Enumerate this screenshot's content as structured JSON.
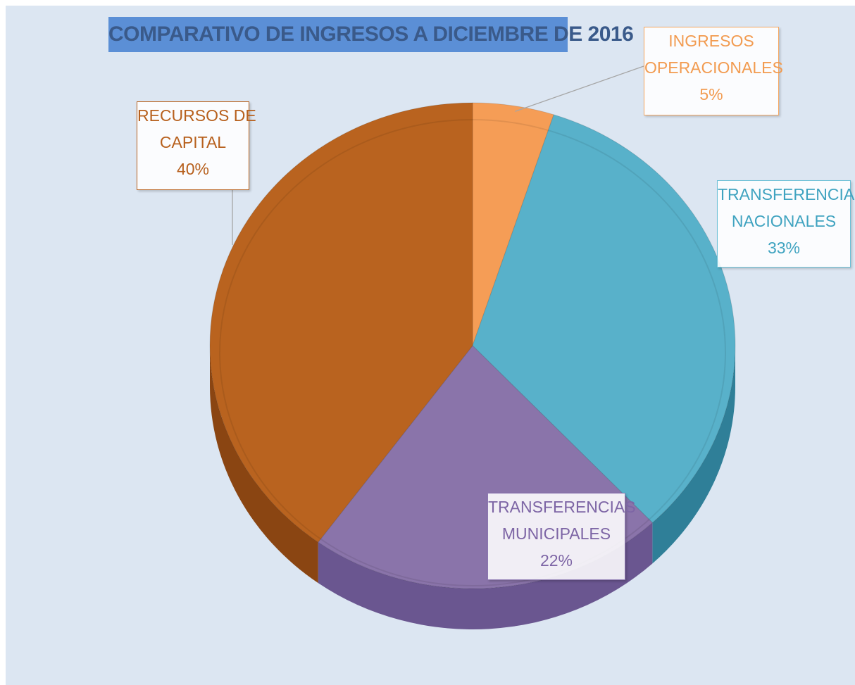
{
  "chart_data": {
    "type": "pie",
    "title": "COMPARATIVO DE INGRESOS A DICIEMBRE  DE 2016",
    "categories": [
      "INGRESOS OPERACIONALES",
      "TRANSFERENCIAS NACIONALES",
      "TRANSFERENCIAS MUNICIPALES",
      "RECURSOS DE CAPITAL"
    ],
    "values": [
      5,
      33,
      22,
      40
    ],
    "colors": [
      "#f59d56",
      "#58b1ca",
      "#8a74aa",
      "#b9631f"
    ],
    "side_colors": [
      "#c87a3a",
      "#2f7f98",
      "#6a5690",
      "#8a4512"
    ],
    "labels": [
      {
        "line1": "INGRESOS",
        "line2": "OPERACIONALES",
        "pct": "5%",
        "text_color": "#f29b50",
        "border_color": "#f5a761"
      },
      {
        "line1": "TRANSFERENCIAS",
        "line2": "NACIONALES",
        "pct": "33%",
        "text_color": "#3fa3c0",
        "border_color": "#6cc0d6"
      },
      {
        "line1": "TRANSFERENCIAS",
        "line2": "MUNICIPALES",
        "pct": "22%",
        "text_color": "#7d65a5",
        "border_color": "#8d78b2"
      },
      {
        "line1": "RECURSOS DE",
        "line2": "CAPITAL",
        "pct": "40%",
        "text_color": "#b7601d",
        "border_color": "#b9631f"
      }
    ],
    "legend": "none",
    "style": "3d-pie"
  }
}
